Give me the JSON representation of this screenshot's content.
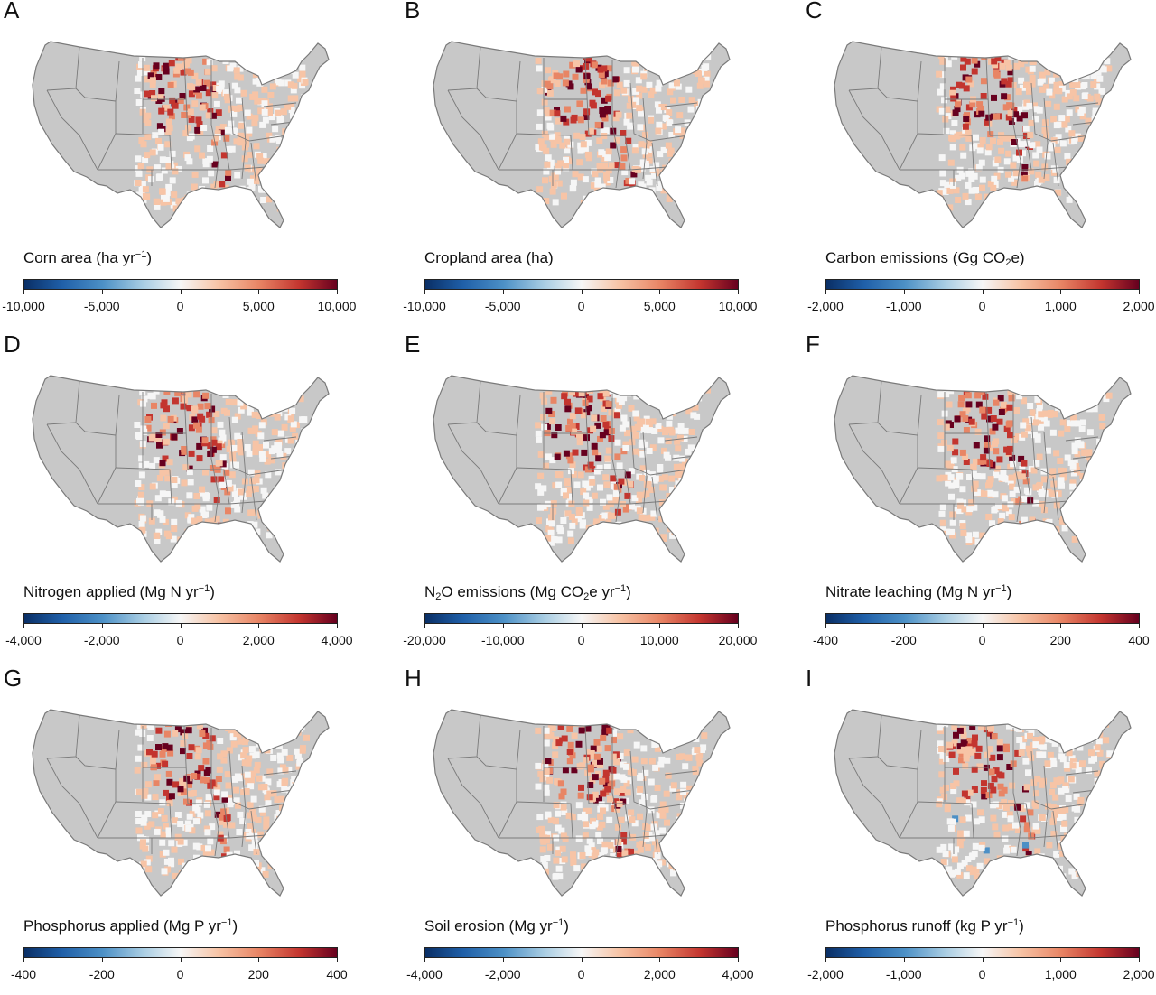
{
  "colors": {
    "land": "#c8c8c8",
    "border": "#7a7a7a",
    "neg_strong": "#0a2f66",
    "neg_mid": "#4c90c6",
    "neutral": "#f6f6f6",
    "pos_light": "#f7c4a6",
    "pos_mid": "#e88565",
    "pos_strong": "#c3352f",
    "pos_max": "#67001f"
  },
  "panels": [
    {
      "letter": "A",
      "title_pre": "Corn area (ha yr",
      "sup": "−1",
      "title_post": ")",
      "ticks": [
        "-10,000",
        "-5,000",
        "0",
        "5,000",
        "10,000"
      ]
    },
    {
      "letter": "B",
      "title_pre": "Cropland area (ha)",
      "ticks": [
        "-10,000",
        "-5,000",
        "0",
        "5,000",
        "10,000"
      ]
    },
    {
      "letter": "C",
      "title_pre": "Carbon emissions (Gg CO",
      "sub": "2",
      "title_post": "e)",
      "ticks": [
        "-2,000",
        "-1,000",
        "0",
        "1,000",
        "2,000"
      ]
    },
    {
      "letter": "D",
      "title_pre": "Nitrogen applied (Mg N yr",
      "sup": "−1",
      "title_post": ")",
      "ticks": [
        "-4,000",
        "-2,000",
        "0",
        "2,000",
        "4,000"
      ]
    },
    {
      "letter": "E",
      "title_pre": "N",
      "sub": "2",
      "title_mid": "O emissions (Mg CO",
      "sub2": "2",
      "title_mid2": "e yr",
      "sup": "−1",
      "title_post": ")",
      "ticks": [
        "-20,000",
        "-10,000",
        "0",
        "10,000",
        "20,000"
      ]
    },
    {
      "letter": "F",
      "title_pre": "Nitrate leaching (Mg N yr",
      "sup": "−1",
      "title_post": ")",
      "ticks": [
        "-400",
        "-200",
        "0",
        "200",
        "400"
      ]
    },
    {
      "letter": "G",
      "title_pre": "Phosphorus applied (Mg P yr",
      "sup": "−1",
      "title_post": ")",
      "ticks": [
        "-400",
        "-200",
        "0",
        "200",
        "400"
      ]
    },
    {
      "letter": "H",
      "title_pre": "Soil erosion (Mg yr",
      "sup": "−1",
      "title_post": ")",
      "ticks": [
        "-4,000",
        "-2,000",
        "0",
        "2,000",
        "4,000"
      ]
    },
    {
      "letter": "I",
      "title_pre": "Phosphorus runoff (kg P yr",
      "sup": "−1",
      "title_post": ")",
      "ticks": [
        "-2,000",
        "-1,000",
        "0",
        "1,000",
        "2,000"
      ]
    }
  ]
}
